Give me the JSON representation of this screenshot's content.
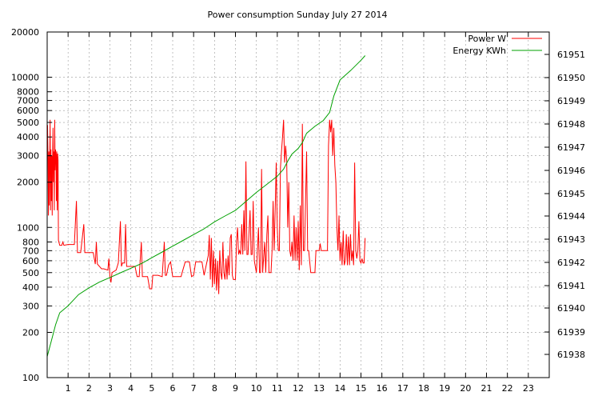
{
  "chart_data": {
    "type": "line",
    "title": "Power consumption Sunday July 27 2014",
    "grid": true,
    "legend_placement": "top-right",
    "x_range": [
      0,
      24
    ],
    "x_ticks": [
      1,
      2,
      3,
      4,
      5,
      6,
      7,
      8,
      9,
      10,
      11,
      12,
      13,
      14,
      15,
      16,
      17,
      18,
      19,
      20,
      21,
      22,
      23
    ],
    "y_left": {
      "scale": "log",
      "range": [
        100,
        20000
      ],
      "ticks": [
        100,
        200,
        300,
        400,
        500,
        600,
        700,
        800,
        1000,
        2000,
        3000,
        4000,
        5000,
        6000,
        7000,
        8000,
        10000,
        20000
      ]
    },
    "y_right": {
      "scale": "custom",
      "ticks": [
        61938,
        61939,
        61940,
        61941,
        61942,
        61943,
        61944,
        61945,
        61946,
        61947,
        61948,
        61949,
        61950,
        61951
      ]
    },
    "series": [
      {
        "name": "Power W",
        "axis": "left",
        "color": "#ff0000",
        "points": [
          [
            0.0,
            2800
          ],
          [
            0.02,
            4800
          ],
          [
            0.04,
            3000
          ],
          [
            0.06,
            1200
          ],
          [
            0.08,
            3200
          ],
          [
            0.1,
            1400
          ],
          [
            0.12,
            2600
          ],
          [
            0.14,
            5200
          ],
          [
            0.16,
            1300
          ],
          [
            0.18,
            3300
          ],
          [
            0.2,
            1500
          ],
          [
            0.22,
            3000
          ],
          [
            0.24,
            1200
          ],
          [
            0.26,
            2900
          ],
          [
            0.28,
            4600
          ],
          [
            0.3,
            2000
          ],
          [
            0.32,
            3200
          ],
          [
            0.34,
            1300
          ],
          [
            0.36,
            5200
          ],
          [
            0.38,
            2400
          ],
          [
            0.4,
            3300
          ],
          [
            0.42,
            3000
          ],
          [
            0.44,
            1500
          ],
          [
            0.46,
            3200
          ],
          [
            0.48,
            1300
          ],
          [
            0.5,
            3100
          ],
          [
            0.52,
            2800
          ],
          [
            0.54,
            820
          ],
          [
            0.6,
            760
          ],
          [
            0.7,
            760
          ],
          [
            0.75,
            800
          ],
          [
            0.8,
            760
          ],
          [
            1.0,
            770
          ],
          [
            1.3,
            770
          ],
          [
            1.4,
            1500
          ],
          [
            1.45,
            680
          ],
          [
            1.6,
            680
          ],
          [
            1.75,
            1050
          ],
          [
            1.8,
            680
          ],
          [
            2.2,
            680
          ],
          [
            2.3,
            570
          ],
          [
            2.35,
            800
          ],
          [
            2.4,
            570
          ],
          [
            2.6,
            530
          ],
          [
            2.7,
            530
          ],
          [
            2.9,
            520
          ],
          [
            2.95,
            620
          ],
          [
            3.0,
            470
          ],
          [
            3.05,
            430
          ],
          [
            3.1,
            500
          ],
          [
            3.3,
            520
          ],
          [
            3.4,
            580
          ],
          [
            3.5,
            1100
          ],
          [
            3.55,
            550
          ],
          [
            3.6,
            580
          ],
          [
            3.7,
            580
          ],
          [
            3.75,
            1050
          ],
          [
            3.8,
            550
          ],
          [
            4.2,
            550
          ],
          [
            4.3,
            470
          ],
          [
            4.4,
            470
          ],
          [
            4.5,
            800
          ],
          [
            4.55,
            470
          ],
          [
            4.8,
            470
          ],
          [
            4.9,
            390
          ],
          [
            5.0,
            390
          ],
          [
            5.05,
            480
          ],
          [
            5.3,
            480
          ],
          [
            5.5,
            470
          ],
          [
            5.6,
            800
          ],
          [
            5.65,
            480
          ],
          [
            5.7,
            480
          ],
          [
            5.8,
            560
          ],
          [
            5.9,
            590
          ],
          [
            6.0,
            470
          ],
          [
            6.4,
            470
          ],
          [
            6.45,
            500
          ],
          [
            6.6,
            590
          ],
          [
            6.8,
            590
          ],
          [
            6.9,
            470
          ],
          [
            7.0,
            480
          ],
          [
            7.1,
            590
          ],
          [
            7.4,
            590
          ],
          [
            7.5,
            480
          ],
          [
            7.7,
            650
          ],
          [
            7.75,
            890
          ],
          [
            7.8,
            450
          ],
          [
            7.85,
            850
          ],
          [
            7.9,
            400
          ],
          [
            7.95,
            700
          ],
          [
            8.0,
            420
          ],
          [
            8.05,
            620
          ],
          [
            8.1,
            380
          ],
          [
            8.15,
            600
          ],
          [
            8.2,
            360
          ],
          [
            8.25,
            700
          ],
          [
            8.3,
            500
          ],
          [
            8.35,
            450
          ],
          [
            8.4,
            800
          ],
          [
            8.45,
            500
          ],
          [
            8.5,
            450
          ],
          [
            8.55,
            620
          ],
          [
            8.6,
            450
          ],
          [
            8.65,
            650
          ],
          [
            8.7,
            480
          ],
          [
            8.75,
            850
          ],
          [
            8.8,
            900
          ],
          [
            8.85,
            480
          ],
          [
            8.9,
            450
          ],
          [
            9.0,
            450
          ],
          [
            9.05,
            800
          ],
          [
            9.1,
            1000
          ],
          [
            9.15,
            660
          ],
          [
            9.2,
            700
          ],
          [
            9.25,
            660
          ],
          [
            9.3,
            1050
          ],
          [
            9.35,
            660
          ],
          [
            9.4,
            1300
          ],
          [
            9.45,
            700
          ],
          [
            9.5,
            2750
          ],
          [
            9.55,
            660
          ],
          [
            9.6,
            660
          ],
          [
            9.7,
            1300
          ],
          [
            9.75,
            660
          ],
          [
            9.8,
            660
          ],
          [
            9.85,
            1500
          ],
          [
            9.9,
            600
          ],
          [
            10.0,
            500
          ],
          [
            10.1,
            1000
          ],
          [
            10.15,
            500
          ],
          [
            10.2,
            500
          ],
          [
            10.25,
            2450
          ],
          [
            10.3,
            500
          ],
          [
            10.4,
            800
          ],
          [
            10.45,
            500
          ],
          [
            10.5,
            900
          ],
          [
            10.55,
            1200
          ],
          [
            10.6,
            500
          ],
          [
            10.7,
            500
          ],
          [
            10.75,
            700
          ],
          [
            10.8,
            1500
          ],
          [
            10.85,
            700
          ],
          [
            10.9,
            1300
          ],
          [
            10.95,
            2700
          ],
          [
            11.0,
            1000
          ],
          [
            11.05,
            700
          ],
          [
            11.1,
            700
          ],
          [
            11.15,
            2500
          ],
          [
            11.2,
            3200
          ],
          [
            11.25,
            4000
          ],
          [
            11.3,
            5200
          ],
          [
            11.35,
            2700
          ],
          [
            11.4,
            3500
          ],
          [
            11.45,
            2800
          ],
          [
            11.5,
            1000
          ],
          [
            11.55,
            2000
          ],
          [
            11.6,
            700
          ],
          [
            11.65,
            640
          ],
          [
            11.7,
            800
          ],
          [
            11.75,
            600
          ],
          [
            11.8,
            1200
          ],
          [
            11.85,
            600
          ],
          [
            11.9,
            1000
          ],
          [
            11.95,
            600
          ],
          [
            12.0,
            1100
          ],
          [
            12.05,
            520
          ],
          [
            12.1,
            1400
          ],
          [
            12.15,
            560
          ],
          [
            12.2,
            4900
          ],
          [
            12.25,
            700
          ],
          [
            12.3,
            700
          ],
          [
            12.4,
            3200
          ],
          [
            12.45,
            700
          ],
          [
            12.5,
            700
          ],
          [
            12.6,
            500
          ],
          [
            12.8,
            500
          ],
          [
            12.85,
            700
          ],
          [
            13.0,
            700
          ],
          [
            13.05,
            780
          ],
          [
            13.1,
            700
          ],
          [
            13.4,
            700
          ],
          [
            13.45,
            3500
          ],
          [
            13.5,
            5200
          ],
          [
            13.55,
            4300
          ],
          [
            13.6,
            5200
          ],
          [
            13.65,
            3000
          ],
          [
            13.7,
            4600
          ],
          [
            13.75,
            2600
          ],
          [
            13.8,
            2000
          ],
          [
            13.85,
            1000
          ],
          [
            13.9,
            700
          ],
          [
            13.95,
            1200
          ],
          [
            14.0,
            600
          ],
          [
            14.05,
            800
          ],
          [
            14.1,
            560
          ],
          [
            14.15,
            950
          ],
          [
            14.2,
            560
          ],
          [
            14.25,
            600
          ],
          [
            14.3,
            900
          ],
          [
            14.35,
            560
          ],
          [
            14.4,
            870
          ],
          [
            14.45,
            560
          ],
          [
            14.5,
            900
          ],
          [
            14.55,
            600
          ],
          [
            14.6,
            700
          ],
          [
            14.65,
            560
          ],
          [
            14.7,
            2700
          ],
          [
            14.75,
            700
          ],
          [
            14.8,
            620
          ],
          [
            14.85,
            700
          ],
          [
            14.9,
            1100
          ],
          [
            14.95,
            600
          ],
          [
            15.0,
            580
          ],
          [
            15.05,
            620
          ],
          [
            15.1,
            580
          ],
          [
            15.15,
            580
          ],
          [
            15.2,
            850
          ]
        ]
      },
      {
        "name": "Energy KWh",
        "axis": "right",
        "color": "#00a000",
        "points": [
          [
            0.0,
            61937.9
          ],
          [
            0.2,
            61938.6
          ],
          [
            0.4,
            61939.3
          ],
          [
            0.6,
            61939.8
          ],
          [
            1.0,
            61940.1
          ],
          [
            1.5,
            61940.6
          ],
          [
            2.0,
            61940.9
          ],
          [
            2.5,
            61941.15
          ],
          [
            3.0,
            61941.35
          ],
          [
            3.5,
            61941.55
          ],
          [
            4.0,
            61941.75
          ],
          [
            4.5,
            61941.95
          ],
          [
            5.0,
            61942.2
          ],
          [
            5.5,
            61942.45
          ],
          [
            6.0,
            61942.7
          ],
          [
            6.5,
            61942.95
          ],
          [
            7.0,
            61943.2
          ],
          [
            7.5,
            61943.45
          ],
          [
            8.0,
            61943.75
          ],
          [
            8.5,
            61944.0
          ],
          [
            9.0,
            61944.25
          ],
          [
            9.5,
            61944.65
          ],
          [
            10.0,
            61945.05
          ],
          [
            10.5,
            61945.4
          ],
          [
            11.0,
            61945.75
          ],
          [
            11.3,
            61946.05
          ],
          [
            11.5,
            61946.4
          ],
          [
            11.7,
            61946.7
          ],
          [
            12.0,
            61946.95
          ],
          [
            12.2,
            61947.2
          ],
          [
            12.4,
            61947.6
          ],
          [
            12.8,
            61947.9
          ],
          [
            13.2,
            61948.15
          ],
          [
            13.5,
            61948.5
          ],
          [
            13.7,
            61949.2
          ],
          [
            14.0,
            61949.9
          ],
          [
            14.5,
            61950.3
          ],
          [
            15.0,
            61950.75
          ],
          [
            15.2,
            61950.95
          ]
        ]
      }
    ]
  }
}
